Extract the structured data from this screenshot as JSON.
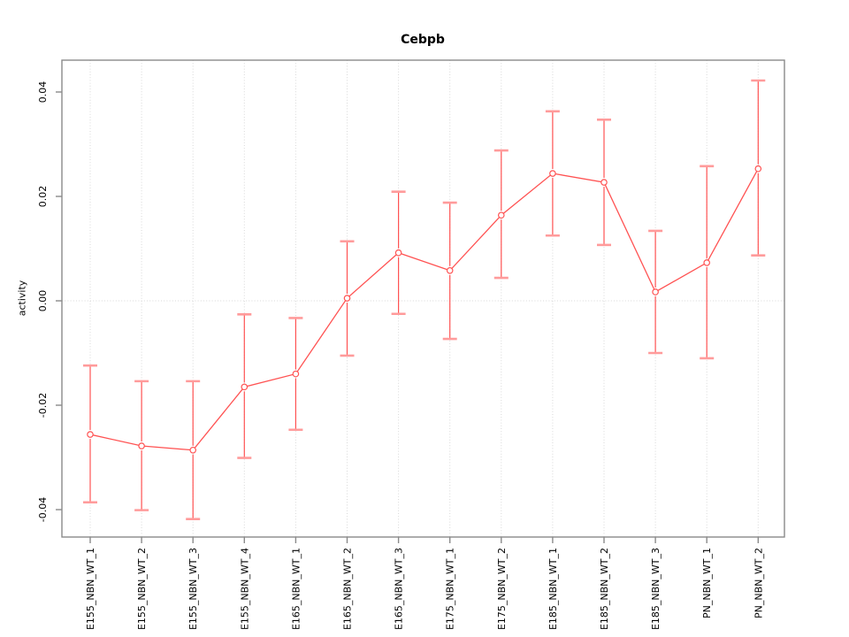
{
  "chart_data": {
    "type": "line",
    "title": "Cebpb",
    "ylabel": "activity",
    "legend": "none",
    "marker": "open-circle",
    "error_bars": true,
    "categories": [
      "E155_NBN_WT_1",
      "E155_NBN_WT_2",
      "E155_NBN_WT_3",
      "E155_NBN_WT_4",
      "E165_NBN_WT_1",
      "E165_NBN_WT_2",
      "E165_NBN_WT_3",
      "E175_NBN_WT_1",
      "E175_NBN_WT_2",
      "E185_NBN_WT_1",
      "E185_NBN_WT_2",
      "E185_NBN_WT_3",
      "PN_NBN_WT_1",
      "PN_NBN_WT_2"
    ],
    "series": [
      {
        "name": "activity",
        "values": [
          -0.0256,
          -0.0278,
          -0.0286,
          -0.0165,
          -0.014,
          0.0005,
          0.0092,
          0.0058,
          0.0164,
          0.0244,
          0.0227,
          0.0017,
          0.0073,
          0.0253
        ],
        "upper": [
          -0.0124,
          -0.0154,
          -0.0154,
          -0.0026,
          -0.0033,
          0.0114,
          0.0209,
          0.0188,
          0.0288,
          0.0363,
          0.0347,
          0.0134,
          0.0258,
          0.0422
        ],
        "lower": [
          -0.0386,
          -0.0401,
          -0.0418,
          -0.0301,
          -0.0247,
          -0.0105,
          -0.0025,
          -0.0073,
          0.0044,
          0.0125,
          0.0107,
          -0.01,
          -0.011,
          0.0087
        ]
      }
    ],
    "ylim": [
      -0.04525,
      0.0461
    ],
    "yticks": [
      {
        "value": -0.04,
        "label": "-0.04"
      },
      {
        "value": -0.02,
        "label": "-0.02"
      },
      {
        "value": 0.0,
        "label": "0.00"
      },
      {
        "value": 0.02,
        "label": "0.02"
      },
      {
        "value": 0.04,
        "label": "0.04"
      }
    ],
    "grid": {
      "vertical_at_categories": true,
      "horizontal_at": [
        0
      ]
    },
    "colors": {
      "line": "#ff5252",
      "cap": "#ff9b9b",
      "grid": "#d8d8d8",
      "box": "#8a8a8a",
      "text": "#000000",
      "background": "#ffffff"
    }
  }
}
